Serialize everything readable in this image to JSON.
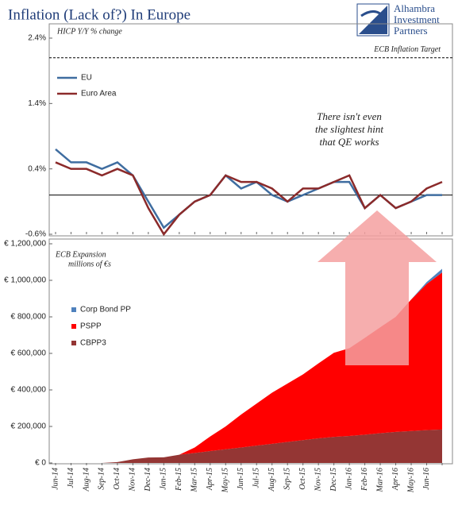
{
  "logo": {
    "line1": "Alhambra",
    "line2": "Investment",
    "line3": "Partners"
  },
  "chart_data": [
    {
      "type": "line",
      "title": "Inflation (Lack of?) In Europe",
      "subtitle": "HICP Y/Y % change",
      "ylim": [
        -0.6,
        2.4
      ],
      "yticks": [
        {
          "value": -0.6,
          "label": "-0.6%"
        },
        {
          "value": 0.4,
          "label": "0.4%"
        },
        {
          "value": 1.4,
          "label": "1.4%"
        },
        {
          "value": 2.4,
          "label": "2.4%"
        }
      ],
      "zero_line": 0,
      "target": {
        "value": 2.1,
        "label": "ECB Inflation Target"
      },
      "annotation": [
        "There isn't even",
        "the slightest hint",
        "that QE works"
      ],
      "legend": "top-left",
      "series": [
        {
          "name": "EU",
          "color": "#3f6da0",
          "values": [
            0.7,
            0.5,
            0.5,
            0.4,
            0.5,
            0.3,
            -0.1,
            -0.5,
            -0.3,
            -0.1,
            0.0,
            0.3,
            0.1,
            0.2,
            0.0,
            -0.1,
            0.0,
            0.1,
            0.2,
            0.2,
            -0.2,
            0.0,
            -0.2,
            -0.1,
            0.0,
            0.0
          ]
        },
        {
          "name": "Euro Area",
          "color": "#8b2a2a",
          "values": [
            0.5,
            0.4,
            0.4,
            0.3,
            0.4,
            0.3,
            -0.2,
            -0.6,
            -0.3,
            -0.1,
            0.0,
            0.3,
            0.2,
            0.2,
            0.1,
            -0.1,
            0.1,
            0.1,
            0.2,
            0.3,
            -0.2,
            0.0,
            -0.2,
            -0.1,
            0.1,
            0.2
          ]
        }
      ]
    },
    {
      "type": "stacked-area",
      "annotation": [
        "ECB Expansion",
        "millions of €s"
      ],
      "categories": [
        "Jun-14",
        "Jul-14",
        "Aug-14",
        "Sep-14",
        "Oct-14",
        "Nov-14",
        "Dec-14",
        "Jan-15",
        "Feb-15",
        "Mar-15",
        "Apr-15",
        "May-15",
        "Jun-15",
        "Jul-15",
        "Aug-15",
        "Sep-15",
        "Oct-15",
        "Nov-15",
        "Dec-15",
        "Jan-16",
        "Feb-16",
        "Mar-16",
        "Apr-16",
        "May-16",
        "Jun-16",
        null
      ],
      "ylim": [
        0,
        1200000
      ],
      "yticks": [
        {
          "value": 0,
          "label": "€ 0"
        },
        {
          "value": 200000,
          "label": "€ 200,000"
        },
        {
          "value": 400000,
          "label": "€ 400,000"
        },
        {
          "value": 600000,
          "label": "€ 600,000"
        },
        {
          "value": 800000,
          "label": "€ 800,000"
        },
        {
          "value": 1000000,
          "label": "€ 1,000,000"
        },
        {
          "value": 1200000,
          "label": "€ 1,200,000"
        }
      ],
      "legend": "left",
      "series": [
        {
          "name": "Corp Bond PP",
          "color": "#4f81bd",
          "values": [
            0,
            0,
            0,
            0,
            0,
            0,
            0,
            0,
            0,
            0,
            0,
            0,
            0,
            0,
            0,
            0,
            0,
            0,
            0,
            0,
            0,
            0,
            0,
            0,
            10000,
            20000
          ]
        },
        {
          "name": "PSPP",
          "color": "#ff0000",
          "values": [
            0,
            0,
            0,
            0,
            0,
            0,
            0,
            0,
            0,
            30000,
            80000,
            125000,
            180000,
            230000,
            280000,
            320000,
            360000,
            410000,
            460000,
            480000,
            530000,
            580000,
            630000,
            720000,
            800000,
            860000
          ]
        },
        {
          "name": "CBPP3",
          "color": "#943634",
          "values": [
            0,
            0,
            0,
            0,
            5000,
            20000,
            30000,
            31000,
            45000,
            55000,
            65000,
            75000,
            85000,
            95000,
            105000,
            115000,
            125000,
            135000,
            143000,
            148000,
            155000,
            163000,
            170000,
            175000,
            180000,
            183000
          ]
        }
      ]
    }
  ]
}
